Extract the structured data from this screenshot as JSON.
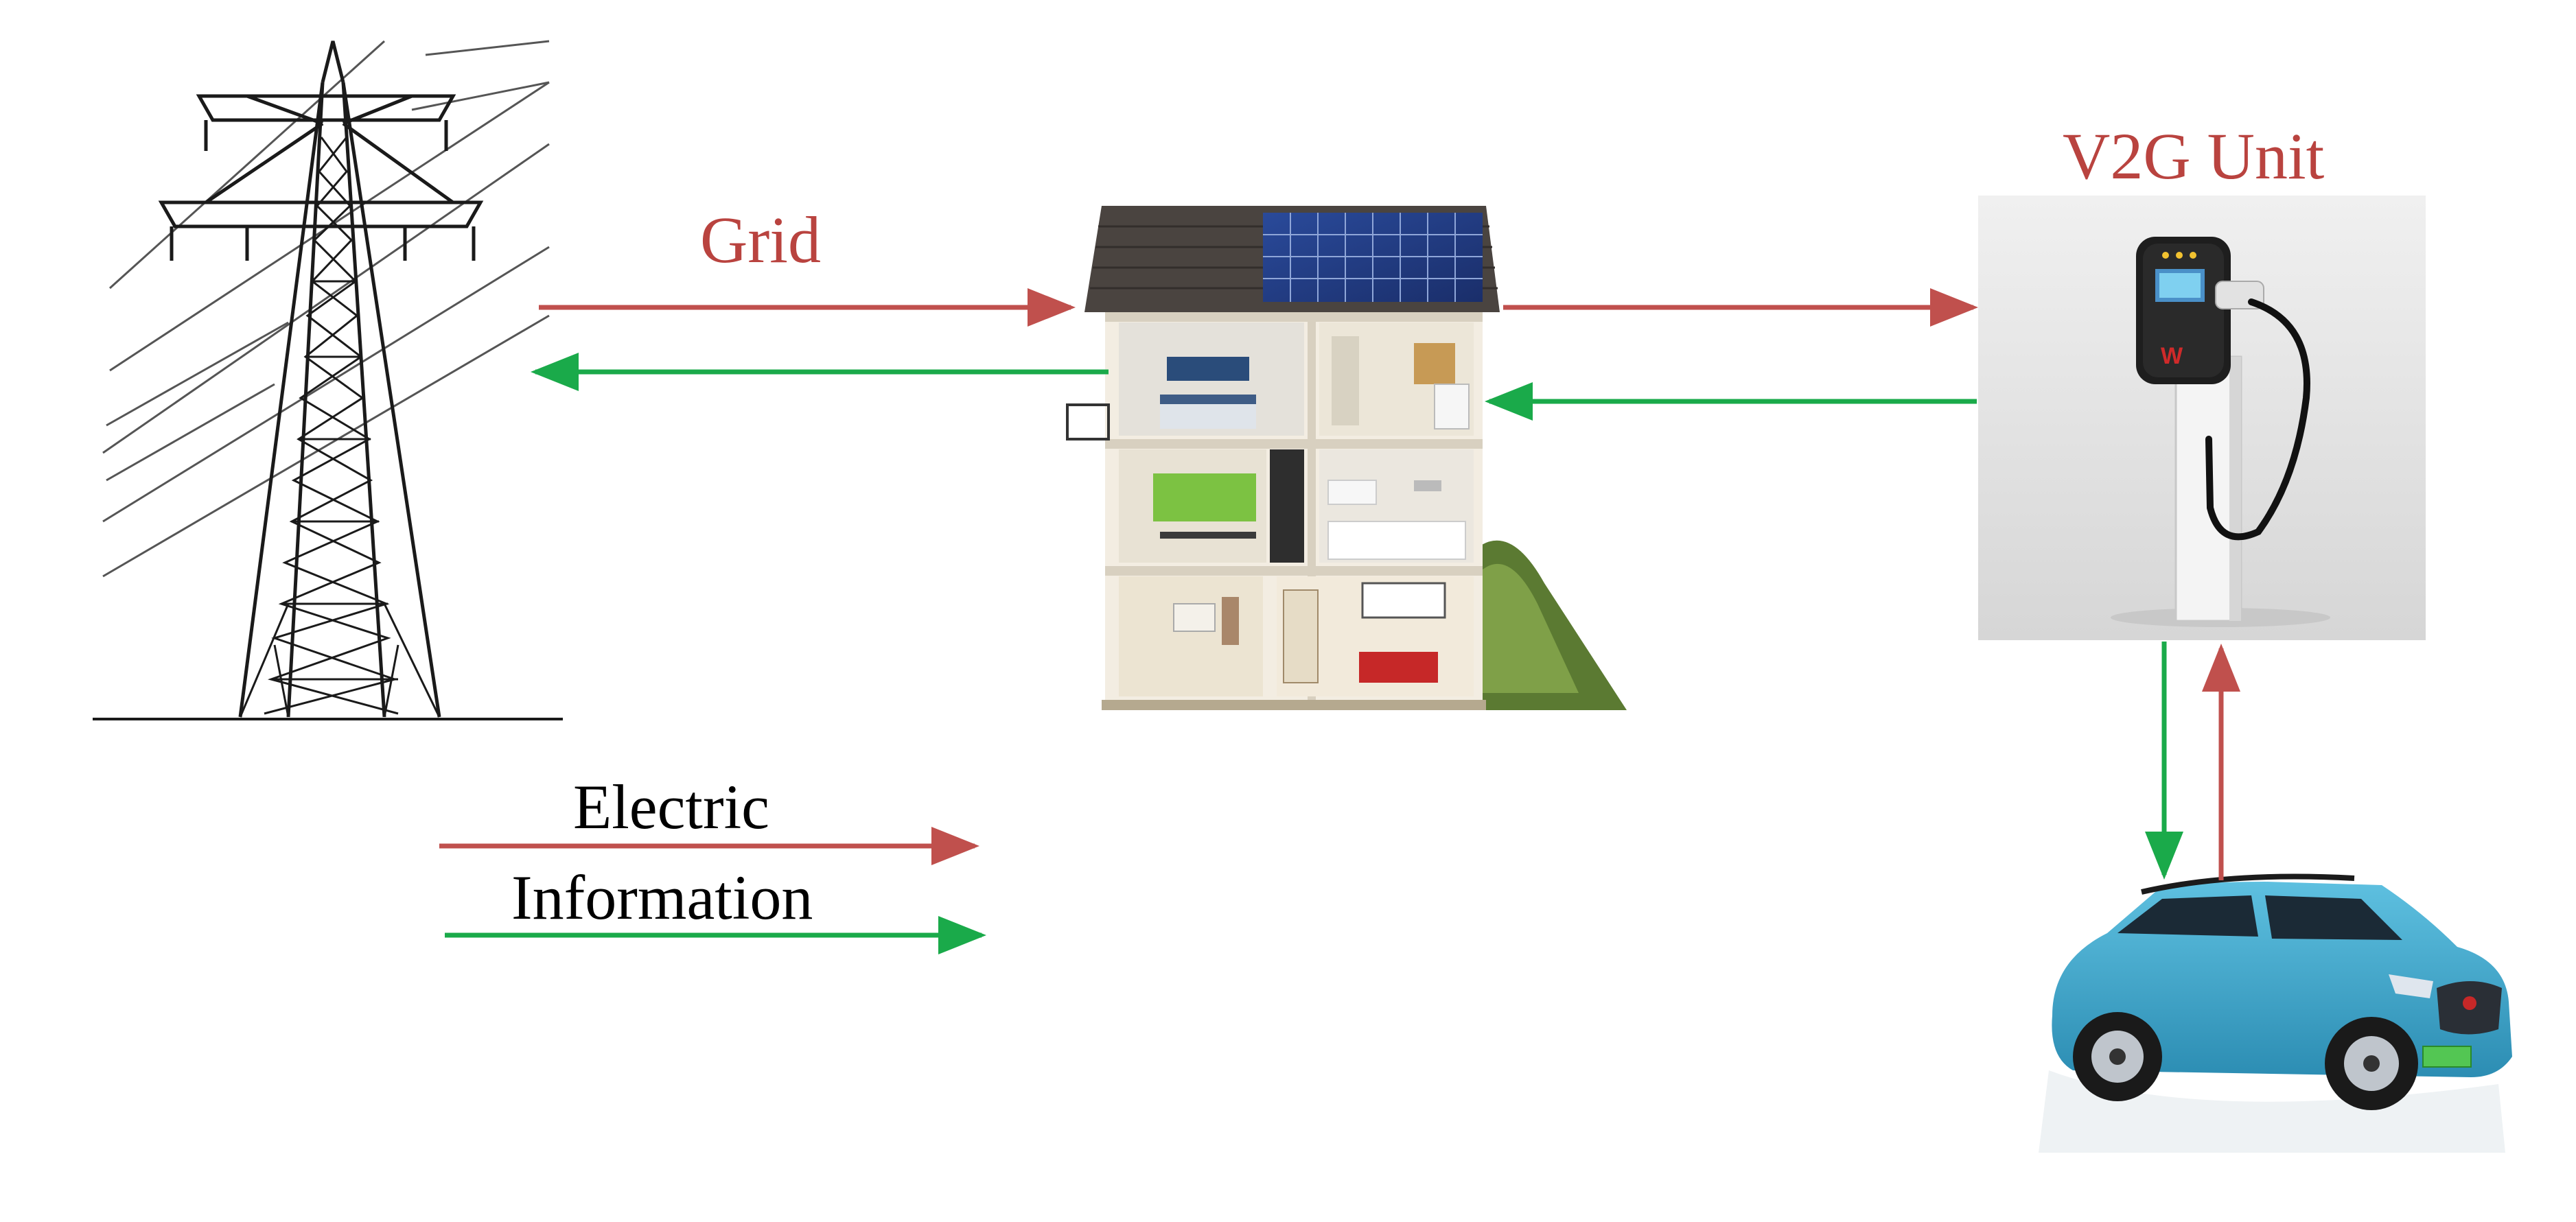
{
  "labels": {
    "grid": "Grid",
    "v2g_unit": "V2G Unit"
  },
  "legend": {
    "electric": "Electric",
    "information": "Information"
  },
  "images": {
    "pylon": "transmission-tower-icon",
    "house": "solar-house-icon",
    "charger": "ev-charger-icon",
    "car": "electric-suv-icon"
  },
  "colors": {
    "electric": "#c0504d",
    "information": "#1aaa4a",
    "label_red": "#b9433f",
    "charger_bg": "#e6e6e6",
    "car_body": "#3a9fc4"
  }
}
